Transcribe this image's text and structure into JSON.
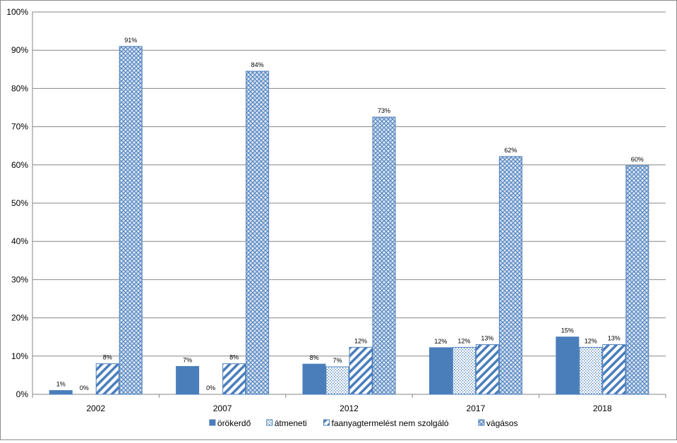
{
  "chart_data": {
    "type": "bar",
    "title": "",
    "xlabel": "",
    "ylabel": "",
    "categories": [
      "2002",
      "2007",
      "2012",
      "2017",
      "2018"
    ],
    "ylim": [
      0,
      100
    ],
    "yticks": [
      "0%",
      "10%",
      "20%",
      "30%",
      "40%",
      "50%",
      "60%",
      "70%",
      "80%",
      "90%",
      "100%"
    ],
    "grid": true,
    "legend_position": "bottom",
    "series": [
      {
        "name": "örökerdő",
        "color": "#4a7ebb",
        "pattern": "solid",
        "values": [
          1,
          7.3,
          7.9,
          12.2,
          15
        ],
        "labels": [
          "1%",
          "7%",
          "8%",
          "12%",
          "15%"
        ]
      },
      {
        "name": "átmeneti",
        "color": "#4a7ebb",
        "pattern": "dots",
        "values": [
          0,
          0,
          7.2,
          12.3,
          12.3
        ],
        "labels": [
          "0%",
          "0%",
          "7%",
          "12%",
          "12%"
        ]
      },
      {
        "name": "faanyagtermelést nem szolgáló",
        "color": "#4a7ebb",
        "pattern": "diagonal",
        "values": [
          8,
          8,
          12.3,
          13,
          13
        ],
        "labels": [
          "8%",
          "8%",
          "12%",
          "13%",
          "13%"
        ]
      },
      {
        "name": "vágásos",
        "color": "#4a7ebb",
        "pattern": "lattice",
        "values": [
          91,
          84.5,
          72.5,
          62.2,
          59.8
        ],
        "labels": [
          "91%",
          "84%",
          "73%",
          "62%",
          "60%"
        ]
      }
    ]
  }
}
